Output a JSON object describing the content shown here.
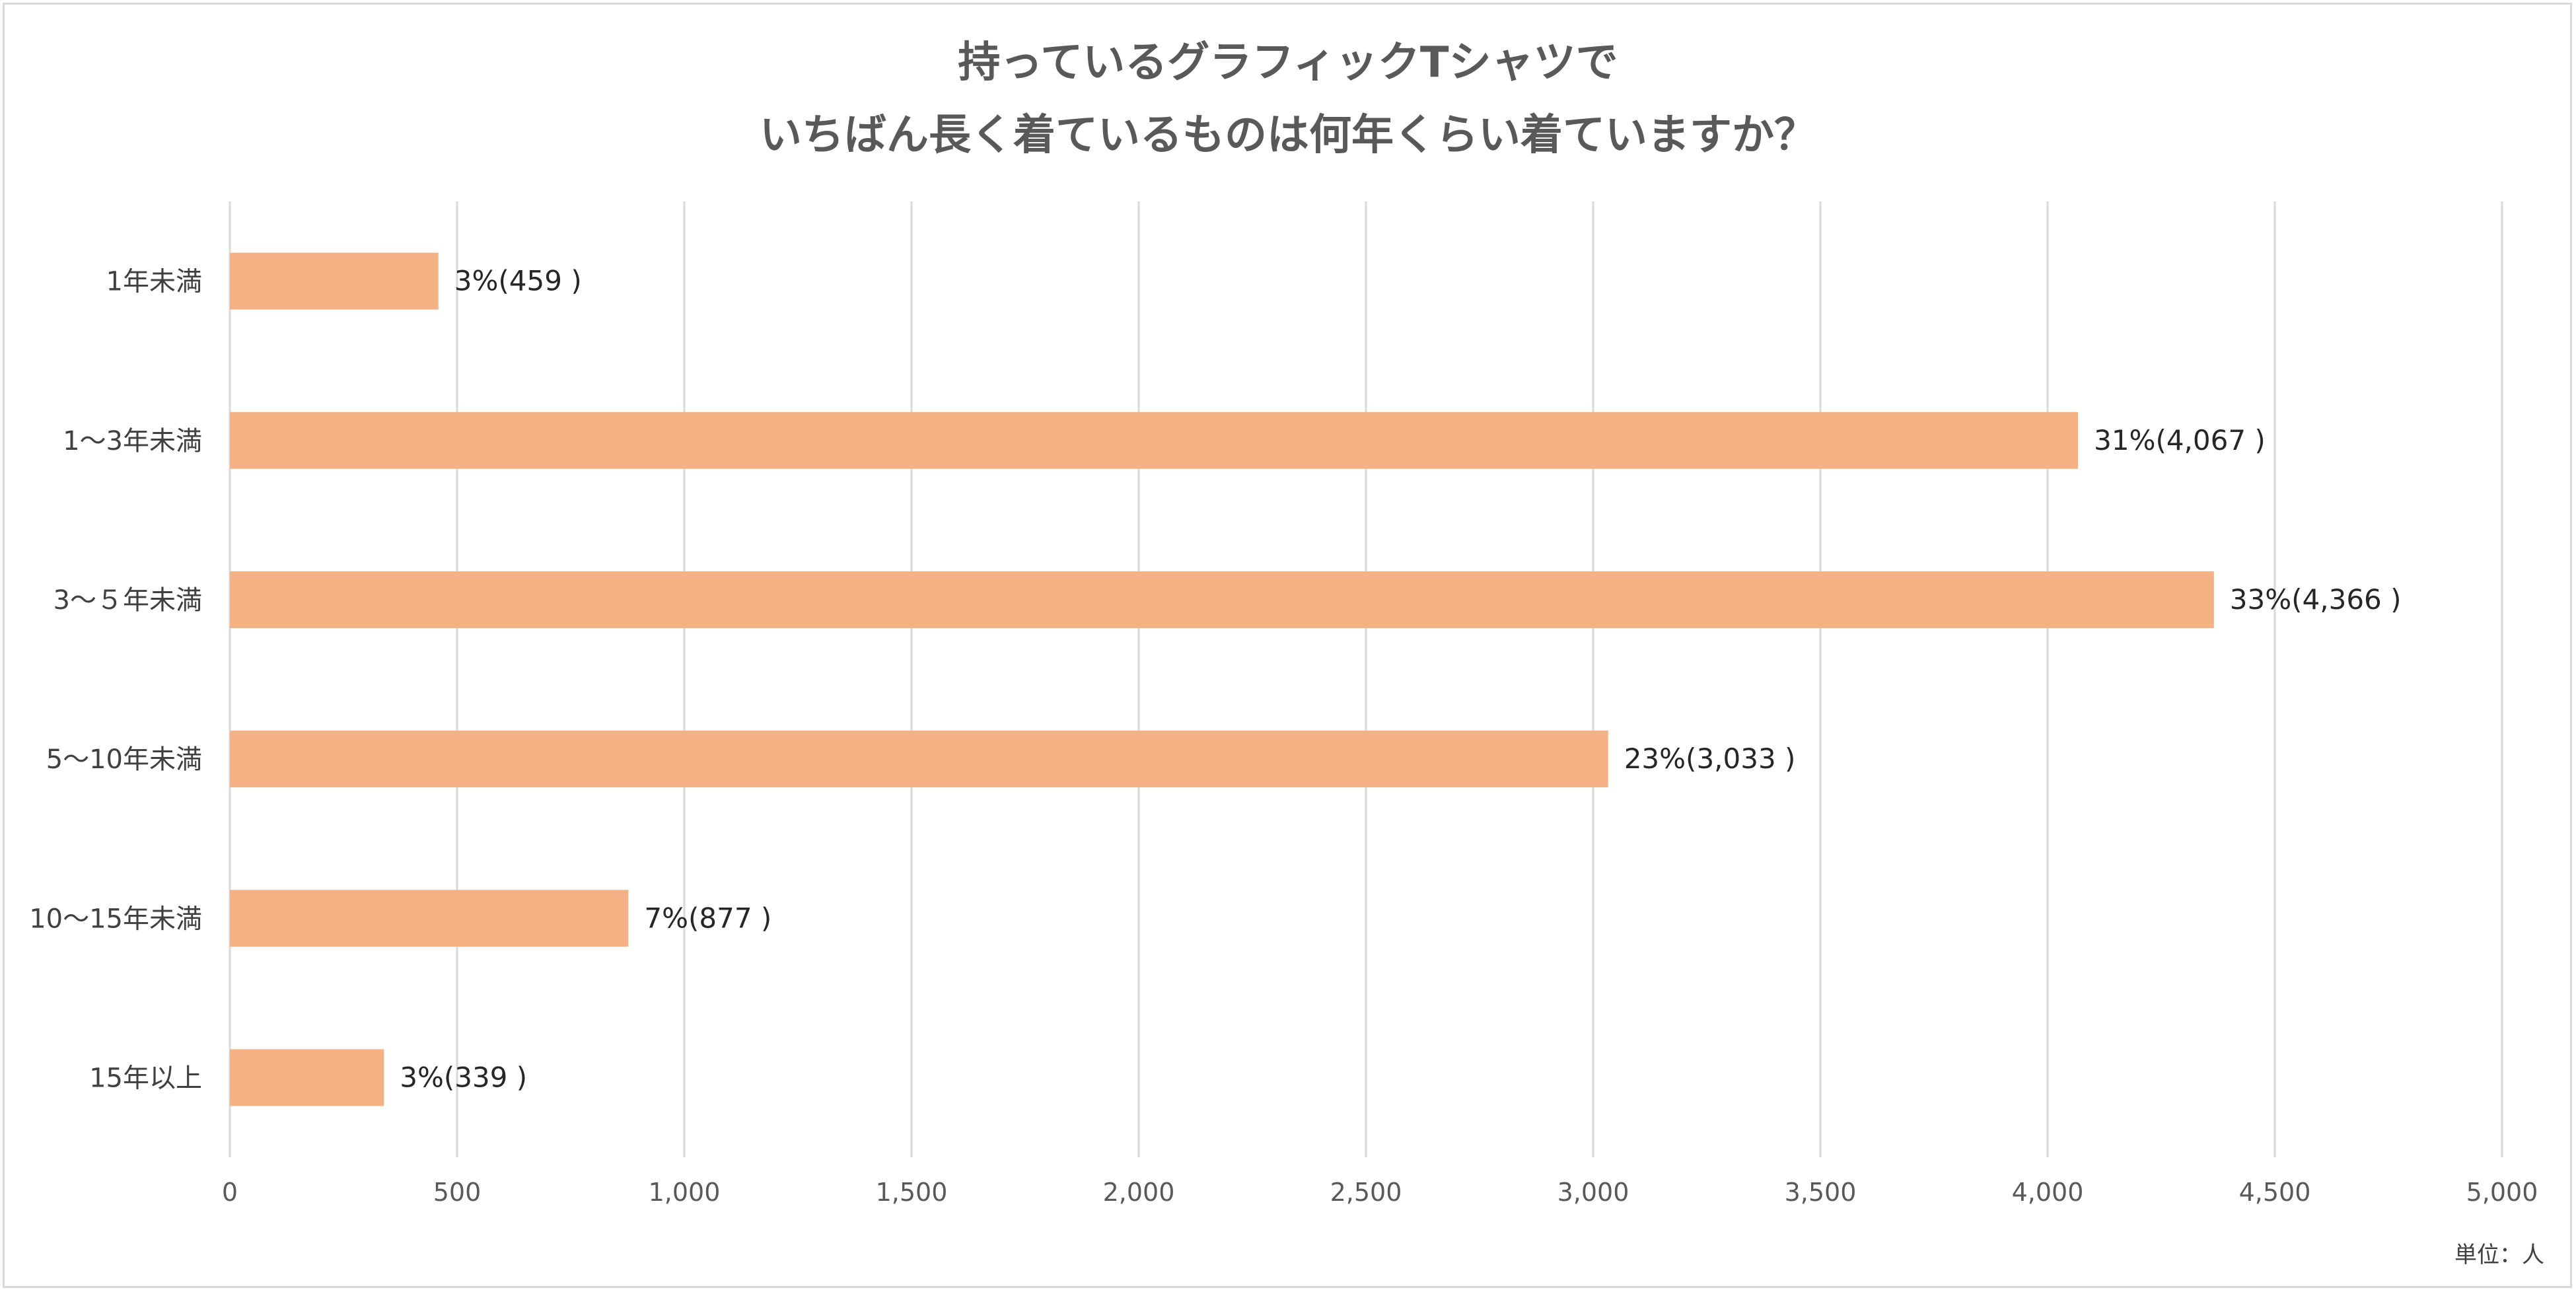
{
  "chart_data": {
    "type": "bar",
    "orientation": "horizontal",
    "title_lines": [
      "持っているグラフィックTシャツで",
      "いちばん長く着ているものは何年くらい着ていますか？"
    ],
    "categories": [
      "1年未満",
      "1〜3年未満",
      "3〜５年未満",
      "5〜10年未満",
      "10〜15年未満",
      "15年以上"
    ],
    "values": [
      459,
      4067,
      4366,
      3033,
      877,
      339
    ],
    "data_labels": [
      "3%(459 )",
      "31%(4,067 )",
      "33%(4,366 )",
      "23%(3,033 )",
      "7%(877 )",
      "3%(339 )"
    ],
    "xlim": [
      0,
      5000
    ],
    "x_ticks": [
      0,
      500,
      1000,
      1500,
      2000,
      2500,
      3000,
      3500,
      4000,
      4500,
      5000
    ],
    "x_tick_labels": [
      "0",
      "500",
      "1,000",
      "1,500",
      "2,000",
      "2,500",
      "3,000",
      "3,500",
      "4,000",
      "4,500",
      "5,000"
    ],
    "grid": "vertical",
    "legend": "none",
    "bar_color": "#f4b183",
    "unit_label": "単位：人"
  }
}
